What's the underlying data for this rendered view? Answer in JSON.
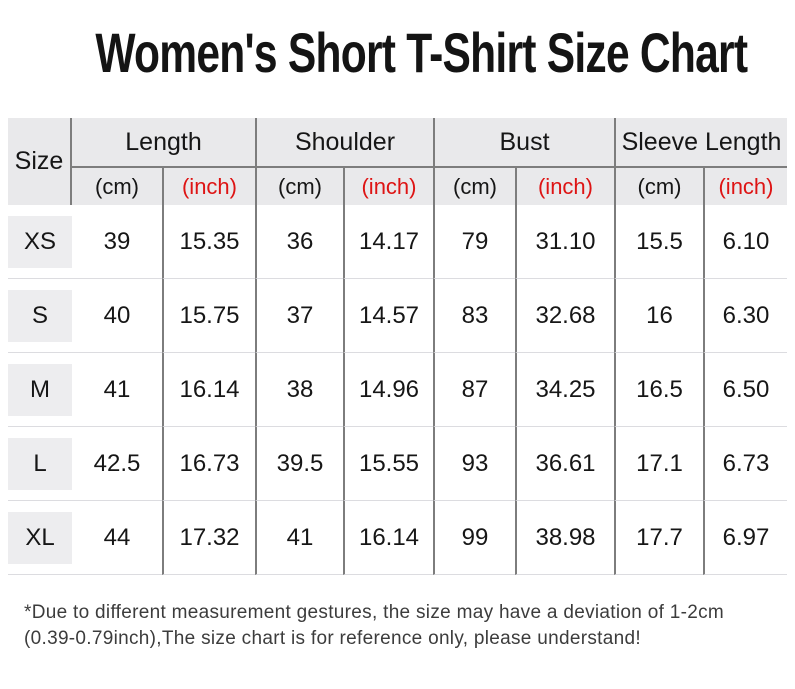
{
  "title": "Women's Short T-Shirt Size Chart",
  "table": {
    "size_header": "Size",
    "groups": [
      "Length",
      "Shoulder",
      "Bust",
      "Sleeve Length"
    ],
    "unit_cm": "(cm)",
    "unit_inch": "(inch)"
  },
  "chart_data": {
    "type": "table",
    "title": "Women's Short T-Shirt Size Chart",
    "column_groups": [
      "Length",
      "Shoulder",
      "Bust",
      "Sleeve Length"
    ],
    "columns": [
      "Size",
      "Length (cm)",
      "Length (inch)",
      "Shoulder (cm)",
      "Shoulder (inch)",
      "Bust (cm)",
      "Bust (inch)",
      "Sleeve Length (cm)",
      "Sleeve Length (inch)"
    ],
    "rows": [
      [
        "XS",
        "39",
        "15.35",
        "36",
        "14.17",
        "79",
        "31.10",
        "15.5",
        "6.10"
      ],
      [
        "S",
        "40",
        "15.75",
        "37",
        "14.57",
        "83",
        "32.68",
        "16",
        "6.30"
      ],
      [
        "M",
        "41",
        "16.14",
        "38",
        "14.96",
        "87",
        "34.25",
        "16.5",
        "6.50"
      ],
      [
        "L",
        "42.5",
        "16.73",
        "39.5",
        "15.55",
        "93",
        "36.61",
        "17.1",
        "6.73"
      ],
      [
        "XL",
        "44",
        "17.32",
        "41",
        "16.14",
        "99",
        "38.98",
        "17.7",
        "6.97"
      ]
    ]
  },
  "footnote": {
    "lines": [
      "*Due to different measurement gestures, the size may have a deviation of 1-2cm",
      "(0.39-0.79inch),The size chart is for reference only, please understand!"
    ]
  },
  "colors": {
    "accent_red": "#de1414",
    "text_black": "#161616",
    "header_bg": "#e9e9eb",
    "chip_bg": "#ededef",
    "divider_dark": "#7d7d7d",
    "divider_light": "#dcdce0"
  }
}
